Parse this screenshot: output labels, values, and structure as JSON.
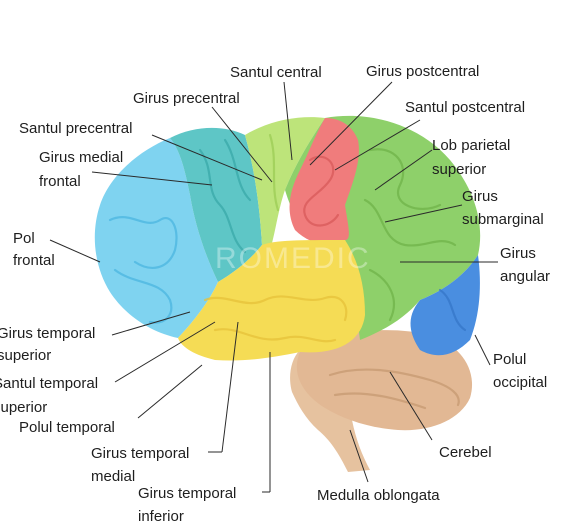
{
  "colors": {
    "frontal_pole": "#7fd3f0",
    "medial_frontal": "#5ec6c6",
    "precentral": "#bde47a",
    "postcentral": "#f07c7c",
    "parietal": "#8ed06a",
    "occipital": "#4a8ee0",
    "temporal": "#f5dc55",
    "cerebellum": "#e2b894",
    "brainstem": "#e6c29f"
  },
  "watermark": "ROMEDIC",
  "labels": {
    "santul_central": "Santul central",
    "girus_postcentral": "Girus postcentral",
    "girus_precentral": "Girus precentral",
    "santul_postcentral": "Santul postcentral",
    "santul_precentral": "Santul precentral",
    "lob_parietal_1": "Lob parietal",
    "lob_parietal_2": "superior",
    "girus_medial_frontal_1": "Girus medial",
    "girus_medial_frontal_2": "frontal",
    "girus_submarginal_1": "Girus",
    "girus_submarginal_2": "submarginal",
    "pol_frontal_1": "Pol",
    "pol_frontal_2": "frontal",
    "girus_angular_1": "Girus",
    "girus_angular_2": "angular",
    "girus_temporal_superior_1": "Girus temporal",
    "girus_temporal_superior_2": "superior",
    "polul_occipital_1": "Polul",
    "polul_occipital_2": "occipital",
    "santul_temporal_1": "Santul temporal",
    "santul_temporal_2": "superior",
    "polul_temporal": "Polul temporal",
    "girus_temporal_medial_1": "Girus temporal",
    "girus_temporal_medial_2": "medial",
    "cerebel": "Cerebel",
    "girus_temporal_inferior_1": "Girus temporal",
    "girus_temporal_inferior_2": "inferior",
    "medulla_oblongata": "Medulla oblongata"
  }
}
